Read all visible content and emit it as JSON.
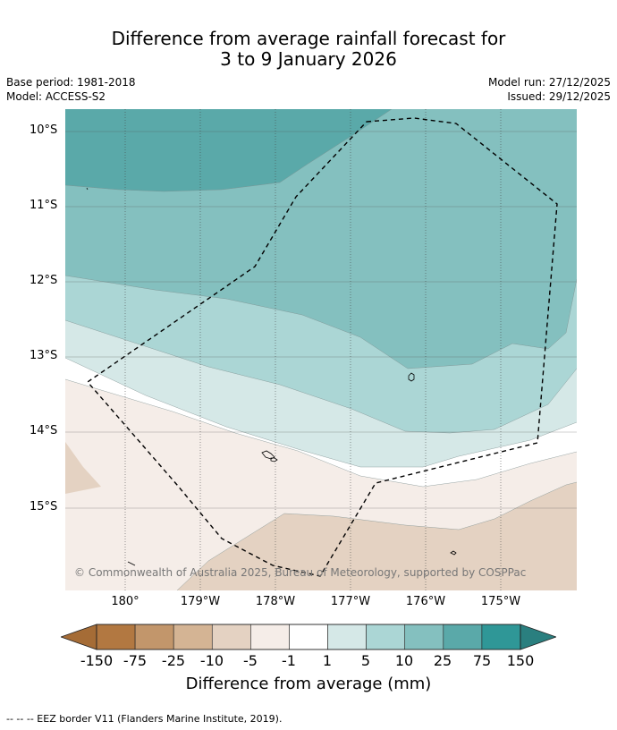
{
  "title": {
    "line1": "Difference from average rainfall forecast for",
    "line2": "3 to 9 January 2026"
  },
  "meta": {
    "base_period": "Base period: 1981-2018",
    "model": "Model: ACCESS-S2",
    "model_run": "Model run: 27/12/2025",
    "issued": "Issued: 29/12/2025"
  },
  "map": {
    "latitude_labels": [
      "10°S",
      "11°S",
      "12°S",
      "13°S",
      "14°S",
      "15°S"
    ],
    "longitude_labels": [
      "180°",
      "179°W",
      "178°W",
      "177°W",
      "176°W",
      "175°W"
    ],
    "copyright": "© Commonwealth of Australia 2025, Bureau of Meteorology, supported by COSPPac"
  },
  "colorbar": {
    "label": "Difference from average (mm)",
    "ticks": [
      "-150",
      "-75",
      "-25",
      "-10",
      "-5",
      "-1",
      "1",
      "5",
      "10",
      "25",
      "75",
      "150"
    ],
    "colors": [
      "#a56c36",
      "#b27841",
      "#c2966b",
      "#d4b494",
      "#e4d2c2",
      "#f5ede8",
      "#ffffff",
      "#d5e8e7",
      "#abd6d5",
      "#84c0bf",
      "#5aa9a9",
      "#2f9797",
      "#2a7f7f"
    ]
  },
  "footnote": "--  --  -- EEZ border V11 (Flanders Marine Institute, 2019)."
}
